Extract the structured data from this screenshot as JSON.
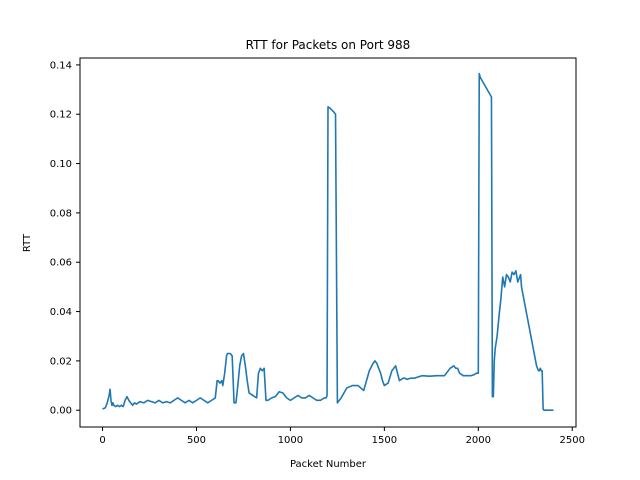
{
  "chart_data": {
    "type": "line",
    "title": "RTT for Packets on Port 988",
    "xlabel": "Packet Number",
    "ylabel": "RTT",
    "xlim": [
      -120,
      2520
    ],
    "ylim": [
      -0.0068,
      0.1428
    ],
    "grid": false,
    "x_ticks": [
      0,
      500,
      1000,
      1500,
      2000,
      2500
    ],
    "x_tick_labels": [
      "0",
      "500",
      "1000",
      "1500",
      "2000",
      "2500"
    ],
    "y_ticks": [
      0.0,
      0.02,
      0.04,
      0.06,
      0.08,
      0.1,
      0.12,
      0.14
    ],
    "y_tick_labels": [
      "0.00",
      "0.02",
      "0.04",
      "0.06",
      "0.08",
      "0.10",
      "0.12",
      "0.14"
    ],
    "line_color": "#1f77b4",
    "series": [
      {
        "x": [
          0,
          15,
          25,
          35,
          40,
          45,
          50,
          55,
          60,
          70,
          80,
          90,
          100,
          110,
          120,
          130,
          140,
          150,
          160,
          170,
          180,
          200,
          220,
          240,
          260,
          280,
          300,
          320,
          340,
          360,
          380,
          400,
          420,
          440,
          460,
          480,
          500,
          520,
          540,
          560,
          580,
          600,
          610,
          615,
          625,
          635,
          640,
          650,
          660,
          665,
          670,
          680,
          690,
          700,
          710,
          720,
          730,
          740,
          750,
          760,
          770,
          780,
          800,
          820,
          830,
          840,
          850,
          860,
          870,
          880,
          890,
          900,
          920,
          940,
          960,
          980,
          1000,
          1020,
          1040,
          1060,
          1080,
          1100,
          1120,
          1140,
          1160,
          1180,
          1190,
          1195,
          1200,
          1210,
          1230,
          1240,
          1250,
          1270,
          1300,
          1330,
          1360,
          1390,
          1420,
          1440,
          1450,
          1460,
          1470,
          1480,
          1490,
          1500,
          1520,
          1540,
          1550,
          1560,
          1580,
          1600,
          1610,
          1620,
          1640,
          1660,
          1700,
          1740,
          1780,
          1820,
          1850,
          1870,
          1880,
          1890,
          1900,
          1920,
          1940,
          1960,
          1980,
          1990,
          2000,
          2005,
          2010,
          2040,
          2070,
          2075,
          2080,
          2085,
          2090,
          2100,
          2110,
          2120,
          2130,
          2140,
          2150,
          2160,
          2170,
          2180,
          2190,
          2200,
          2210,
          2220,
          2225,
          2230,
          2240,
          2250,
          2260,
          2270,
          2280,
          2290,
          2300,
          2310,
          2320,
          2325,
          2330,
          2335,
          2340,
          2345,
          2350,
          2360,
          2370,
          2400
        ],
        "y": [
          0.0005,
          0.001,
          0.003,
          0.006,
          0.0085,
          0.004,
          0.002,
          0.003,
          0.002,
          0.0015,
          0.002,
          0.0015,
          0.002,
          0.0015,
          0.004,
          0.0055,
          0.004,
          0.003,
          0.002,
          0.003,
          0.0025,
          0.0035,
          0.003,
          0.004,
          0.0035,
          0.003,
          0.004,
          0.003,
          0.0035,
          0.003,
          0.004,
          0.005,
          0.004,
          0.003,
          0.004,
          0.003,
          0.004,
          0.005,
          0.004,
          0.003,
          0.004,
          0.005,
          0.012,
          0.012,
          0.011,
          0.012,
          0.01,
          0.015,
          0.022,
          0.023,
          0.023,
          0.023,
          0.022,
          0.003,
          0.003,
          0.01,
          0.018,
          0.022,
          0.023,
          0.018,
          0.012,
          0.007,
          0.006,
          0.005,
          0.015,
          0.017,
          0.016,
          0.017,
          0.004,
          0.004,
          0.0045,
          0.005,
          0.0055,
          0.0075,
          0.007,
          0.005,
          0.004,
          0.005,
          0.006,
          0.005,
          0.005,
          0.006,
          0.005,
          0.004,
          0.004,
          0.005,
          0.005,
          0.006,
          0.123,
          0.1225,
          0.121,
          0.12,
          0.003,
          0.005,
          0.009,
          0.01,
          0.01,
          0.008,
          0.016,
          0.019,
          0.02,
          0.019,
          0.017,
          0.015,
          0.012,
          0.01,
          0.011,
          0.016,
          0.017,
          0.018,
          0.012,
          0.013,
          0.013,
          0.0125,
          0.013,
          0.013,
          0.014,
          0.0138,
          0.014,
          0.014,
          0.017,
          0.018,
          0.017,
          0.017,
          0.015,
          0.014,
          0.014,
          0.014,
          0.0145,
          0.015,
          0.015,
          0.1365,
          0.135,
          0.131,
          0.127,
          0.0055,
          0.0055,
          0.02,
          0.025,
          0.03,
          0.038,
          0.045,
          0.054,
          0.05,
          0.055,
          0.054,
          0.052,
          0.056,
          0.055,
          0.0565,
          0.052,
          0.054,
          0.055,
          0.05,
          0.046,
          0.042,
          0.038,
          0.034,
          0.03,
          0.026,
          0.022,
          0.018,
          0.016,
          0.016,
          0.017,
          0.016,
          0.016,
          0.0005,
          0.0,
          0.0,
          0.0,
          0.0
        ]
      }
    ]
  }
}
